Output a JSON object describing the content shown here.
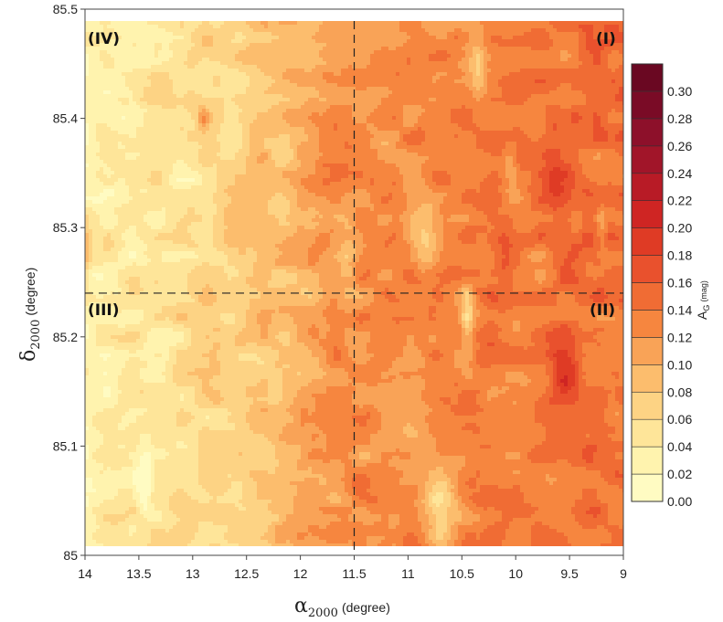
{
  "chart_data": {
    "type": "heatmap",
    "xlabel": {
      "symbol": "α",
      "subscript": "2000",
      "unit": "(degree)"
    },
    "ylabel": {
      "symbol": "δ",
      "subscript": "2000",
      "unit": "(degree)"
    },
    "xlim": [
      14,
      9
    ],
    "ylim": [
      85.0,
      85.5
    ],
    "x_ticks": [
      "14",
      "13.5",
      "13",
      "12.5",
      "12",
      "11.5",
      "11",
      "10.5",
      "10",
      "9.5",
      "9"
    ],
    "y_ticks": [
      "85",
      "85.1",
      "85.2",
      "85.3",
      "85.4",
      "85.5"
    ],
    "colorbar": {
      "label": "A",
      "label_sub": "G",
      "label_unit": "(mag)",
      "levels": [
        0.0,
        0.02,
        0.04,
        0.06,
        0.08,
        0.1,
        0.12,
        0.14,
        0.16,
        0.18,
        0.2,
        0.22,
        0.24,
        0.26,
        0.28,
        0.3
      ],
      "tick_labels": [
        "0.00",
        "0.02",
        "0.04",
        "0.06",
        "0.08",
        "0.10",
        "0.12",
        "0.14",
        "0.16",
        "0.18",
        "0.20",
        "0.22",
        "0.24",
        "0.26",
        "0.28",
        "0.30"
      ],
      "colors": [
        "#fffbc2",
        "#fff3ae",
        "#fee599",
        "#fdd384",
        "#fcbd6d",
        "#f9a357",
        "#f6863f",
        "#f06c34",
        "#e9512d",
        "#df3b25",
        "#cf2523",
        "#b81b26",
        "#a11529",
        "#8d102a",
        "#7a0b26",
        "#6a0822"
      ],
      "range": [
        0.0,
        0.32
      ]
    },
    "divider_lines": {
      "x": 11.5,
      "y": 85.24
    },
    "quadrants": [
      {
        "label": "(I)",
        "position": "top-right"
      },
      {
        "label": "(II)",
        "position": "middle-right"
      },
      {
        "label": "(III)",
        "position": "middle-left"
      },
      {
        "label": "(IV)",
        "position": "top-left"
      }
    ],
    "field_description": "Extinction A_G increases from east (alpha=14, ~0.00-0.08 mag) to west (alpha=9, ~0.12-0.18 mag)",
    "grid": false
  }
}
